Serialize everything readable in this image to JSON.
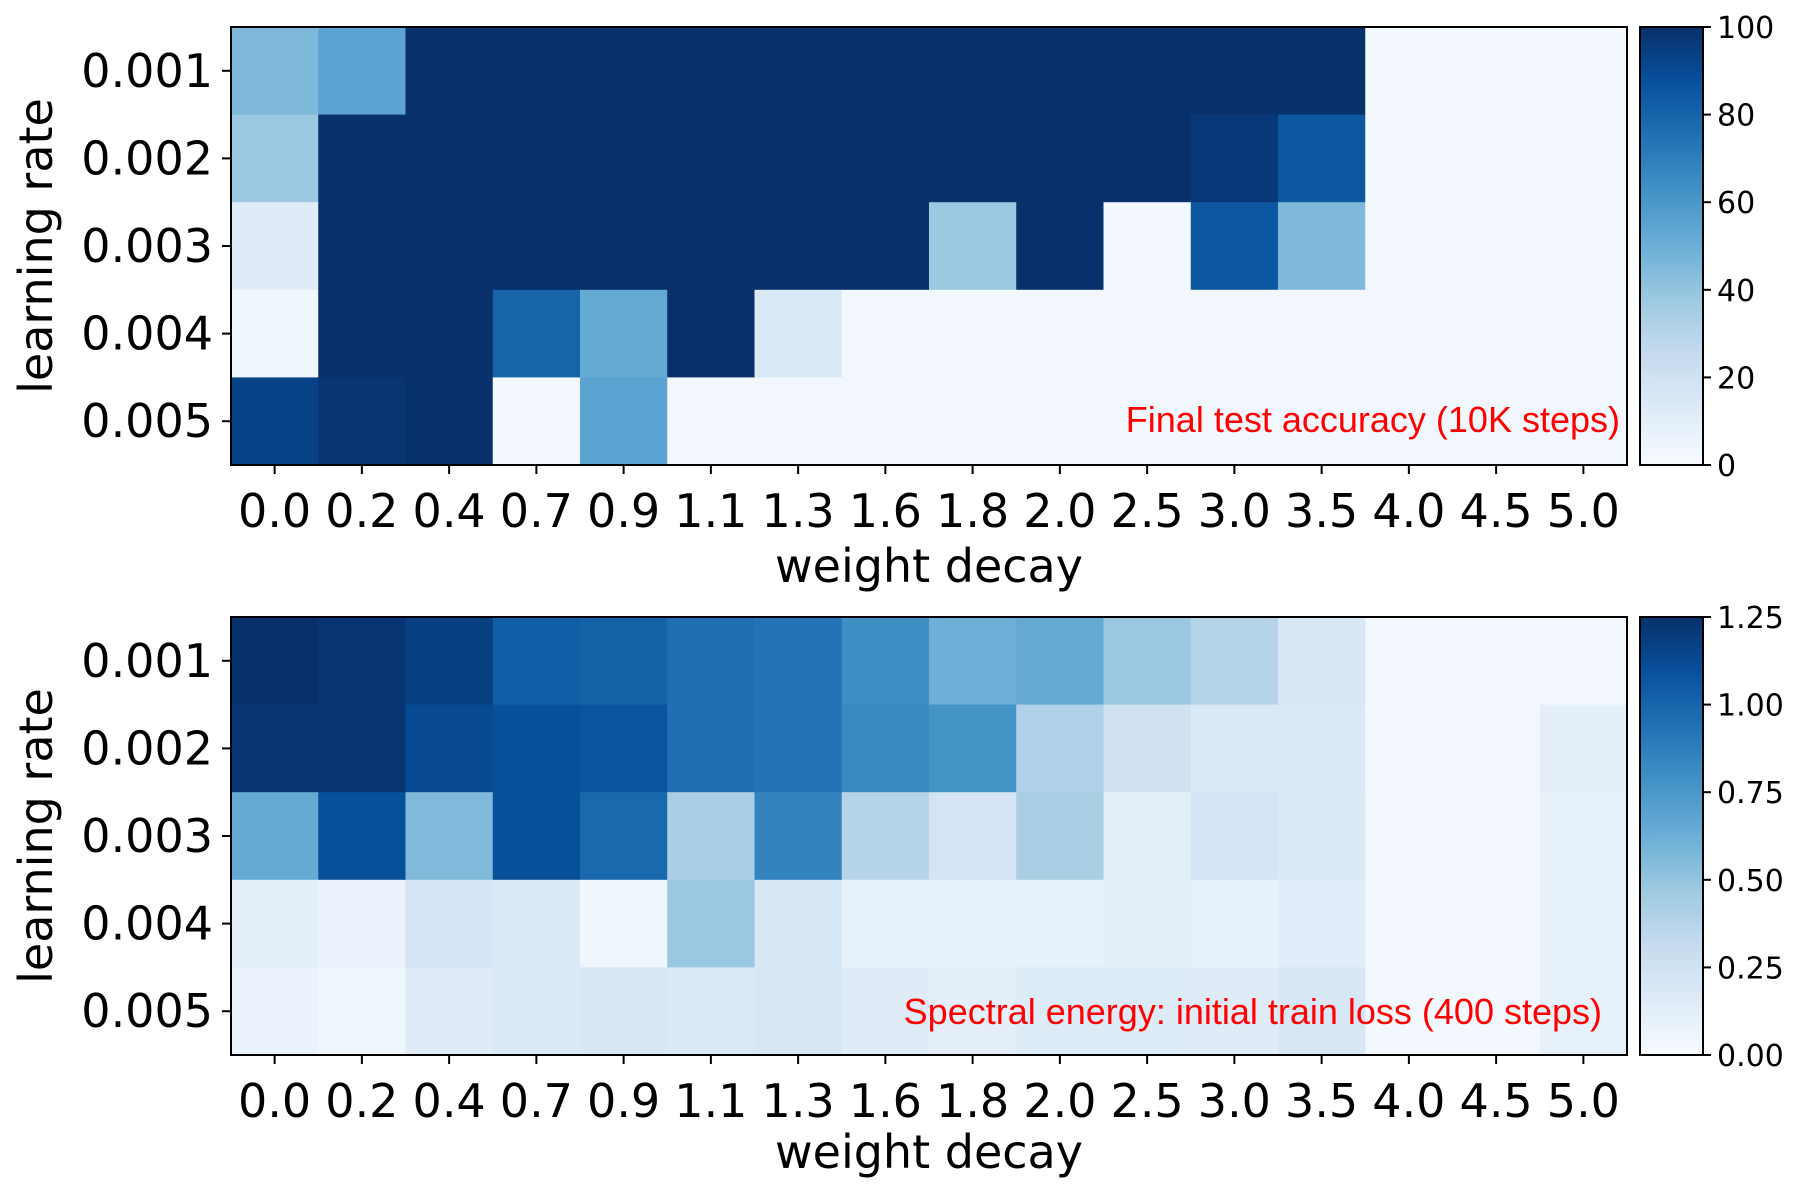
{
  "chart_data": [
    {
      "type": "heatmap",
      "annotation": "Final test accuracy (10K steps)",
      "xlabel": "weight decay",
      "ylabel": "learning rate",
      "x_categories": [
        "0.0",
        "0.2",
        "0.4",
        "0.7",
        "0.9",
        "1.1",
        "1.3",
        "1.6",
        "1.8",
        "2.0",
        "2.5",
        "3.0",
        "3.5",
        "4.0",
        "4.5",
        "5.0"
      ],
      "y_categories": [
        "0.001",
        "0.002",
        "0.003",
        "0.004",
        "0.005"
      ],
      "values": [
        [
          45,
          55,
          100,
          100,
          100,
          100,
          100,
          100,
          100,
          100,
          100,
          100,
          100,
          2,
          2,
          2
        ],
        [
          38,
          100,
          100,
          100,
          100,
          100,
          100,
          100,
          100,
          100,
          100,
          97,
          85,
          2,
          2,
          2
        ],
        [
          12,
          100,
          100,
          100,
          100,
          100,
          100,
          100,
          38,
          100,
          2,
          85,
          45,
          2,
          2,
          2
        ],
        [
          4,
          100,
          100,
          80,
          52,
          100,
          15,
          3,
          3,
          3,
          3,
          3,
          3,
          3,
          3,
          3
        ],
        [
          93,
          98,
          100,
          2,
          55,
          3,
          3,
          3,
          3,
          3,
          3,
          3,
          3,
          3,
          3,
          3
        ]
      ],
      "colorbar": {
        "range": [
          0,
          100
        ],
        "ticks": [
          "0",
          "20",
          "40",
          "60",
          "80",
          "100"
        ]
      },
      "colormap": "Blues"
    },
    {
      "type": "heatmap",
      "annotation": "Spectral energy: initial train loss (400 steps)",
      "xlabel": "weight decay",
      "ylabel": "learning rate",
      "x_categories": [
        "0.0",
        "0.2",
        "0.4",
        "0.7",
        "0.9",
        "1.1",
        "1.3",
        "1.6",
        "1.8",
        "2.0",
        "2.5",
        "3.0",
        "3.5",
        "4.0",
        "4.5",
        "5.0"
      ],
      "y_categories": [
        "0.001",
        "0.002",
        "0.003",
        "0.004",
        "0.005"
      ],
      "values": [
        [
          1.25,
          1.22,
          1.18,
          1.03,
          1.01,
          0.95,
          0.93,
          0.8,
          0.62,
          0.65,
          0.48,
          0.38,
          0.2,
          0.03,
          0.03,
          0.03
        ],
        [
          1.22,
          1.22,
          1.12,
          1.1,
          1.08,
          0.95,
          0.93,
          0.82,
          0.77,
          0.4,
          0.25,
          0.18,
          0.18,
          0.03,
          0.03,
          0.12
        ],
        [
          0.65,
          1.1,
          0.56,
          1.1,
          0.98,
          0.42,
          0.85,
          0.38,
          0.22,
          0.42,
          0.13,
          0.22,
          0.17,
          0.03,
          0.03,
          0.1
        ],
        [
          0.12,
          0.08,
          0.22,
          0.18,
          0.05,
          0.48,
          0.2,
          0.1,
          0.1,
          0.1,
          0.12,
          0.1,
          0.14,
          0.03,
          0.03,
          0.1
        ],
        [
          0.08,
          0.05,
          0.15,
          0.18,
          0.2,
          0.18,
          0.2,
          0.15,
          0.12,
          0.16,
          0.16,
          0.15,
          0.2,
          0.03,
          0.03,
          0.1
        ]
      ],
      "colorbar": {
        "range": [
          0,
          1.25
        ],
        "ticks": [
          "0.00",
          "0.25",
          "0.50",
          "0.75",
          "1.00",
          "1.25"
        ]
      },
      "colormap": "Blues"
    }
  ]
}
